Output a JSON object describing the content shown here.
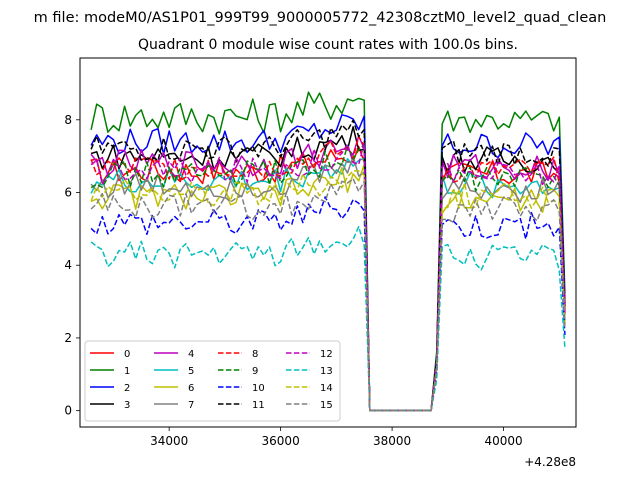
{
  "chart_data": {
    "type": "line",
    "suptitle": "m file: modeM0/AS1P01_999T99_9000005772_42308cztM0_level2_quad_clean",
    "title": "Quadrant 0 module wise count rates with 100.0s bins.",
    "xlabel": "",
    "ylabel": "",
    "x_offset_label": "+4.28e8",
    "xlim": [
      32400,
      41300
    ],
    "ylim": [
      -0.45,
      9.7
    ],
    "xticks": [
      34000,
      36000,
      38000,
      40000
    ],
    "xtick_labels": [
      "34000",
      "36000",
      "38000",
      "40000"
    ],
    "yticks": [
      0,
      2,
      4,
      6,
      8
    ],
    "ytick_labels": [
      "0",
      "2",
      "4",
      "6",
      "8"
    ],
    "grid": false,
    "legend_position": "lower-left",
    "bin_seconds": 100,
    "segments": [
      {
        "x_start": 32600,
        "x_end": 37500,
        "step": 100
      },
      {
        "x_start": 38800,
        "x_end": 41100,
        "step": 100
      }
    ],
    "gap": {
      "x_start": 37600,
      "x_end": 38700,
      "value": 0
    },
    "series": [
      {
        "name": "0",
        "color": "#ff0000",
        "dash": "solid",
        "base": 6.6
      },
      {
        "name": "1",
        "color": "#008000",
        "dash": "solid",
        "base": 8.1
      },
      {
        "name": "2",
        "color": "#0000ff",
        "dash": "solid",
        "base": 7.4
      },
      {
        "name": "3",
        "color": "#000000",
        "dash": "solid",
        "base": 7.0
      },
      {
        "name": "4",
        "color": "#bf00bf",
        "dash": "solid",
        "base": 6.8
      },
      {
        "name": "5",
        "color": "#00bfbf",
        "dash": "solid",
        "base": 6.3
      },
      {
        "name": "6",
        "color": "#bfbf00",
        "dash": "solid",
        "base": 5.9
      },
      {
        "name": "7",
        "color": "#808080",
        "dash": "solid",
        "base": 6.2
      },
      {
        "name": "8",
        "color": "#ff0000",
        "dash": "dashed",
        "base": 6.7
      },
      {
        "name": "9",
        "color": "#008000",
        "dash": "dashed",
        "base": 6.5
      },
      {
        "name": "10",
        "color": "#0000ff",
        "dash": "dashed",
        "base": 5.2
      },
      {
        "name": "11",
        "color": "#000000",
        "dash": "dashed",
        "base": 7.2
      },
      {
        "name": "12",
        "color": "#bf00bf",
        "dash": "dashed",
        "base": 6.6
      },
      {
        "name": "13",
        "color": "#00bfbf",
        "dash": "dashed",
        "base": 4.3
      },
      {
        "name": "14",
        "color": "#bfbf00",
        "dash": "dashed",
        "base": 6.0
      },
      {
        "name": "15",
        "color": "#808080",
        "dash": "dashed",
        "base": 5.6
      }
    ]
  }
}
